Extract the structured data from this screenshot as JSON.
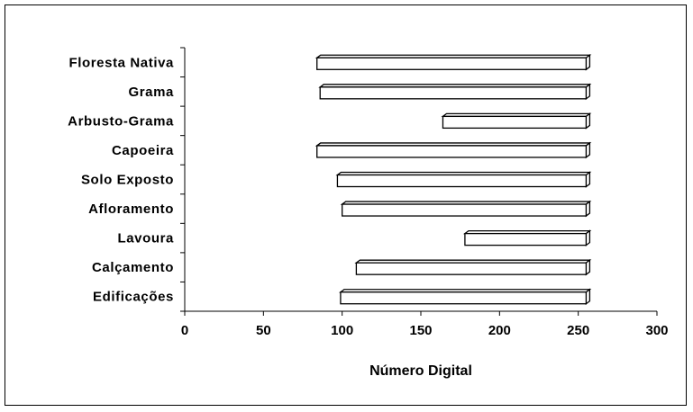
{
  "chart_data": {
    "type": "bar",
    "orientation": "horizontal",
    "style": "floating-range-3d",
    "categories": [
      "Floresta Nativa",
      "Grama",
      "Arbusto-Grama",
      "Capoeira",
      "Solo Exposto",
      "Afloramento",
      "Lavoura",
      "Calçamento",
      "Edificações"
    ],
    "series": [
      {
        "start": [
          84,
          86,
          164,
          84,
          97,
          100,
          178,
          109,
          99
        ],
        "end": [
          255,
          255,
          255,
          255,
          255,
          255,
          255,
          255,
          255
        ]
      }
    ],
    "xlabel": "Número Digital",
    "ylabel": "",
    "xlim": [
      0,
      300
    ],
    "xticks": [
      "0",
      "50",
      "100",
      "150",
      "200",
      "250",
      "300"
    ],
    "grid": false,
    "legend": "none",
    "bar_fill": "#ffffff",
    "bar_stroke": "#000000"
  }
}
